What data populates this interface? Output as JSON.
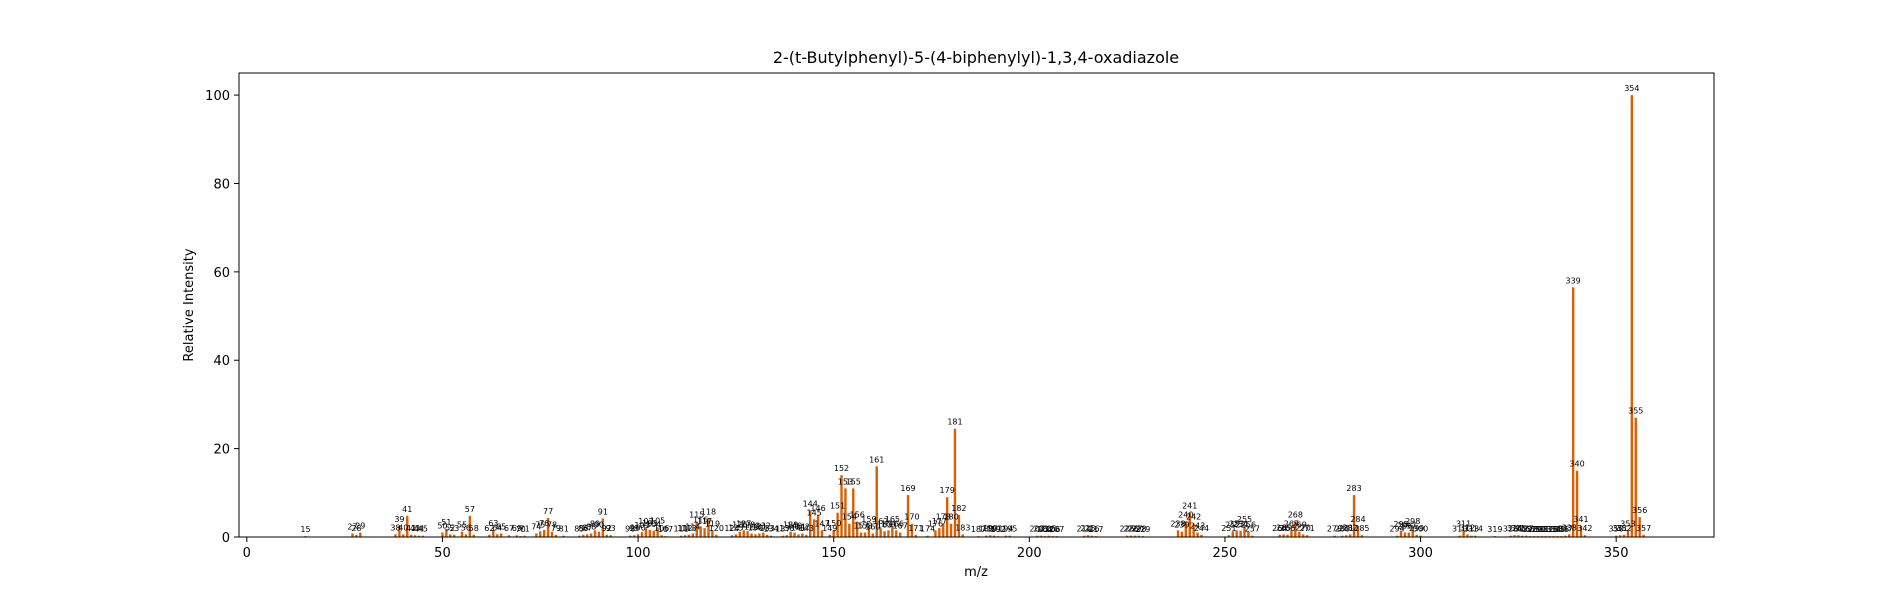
{
  "chart_data": {
    "type": "bar",
    "title": "2-(t-Butylphenyl)-5-(4-biphenylyl)-1,3,4-oxadiazole",
    "xlabel": "m/z",
    "ylabel": "Relative Intensity",
    "xlim": [
      -2,
      375
    ],
    "ylim": [
      0,
      105
    ],
    "xticks": [
      0,
      50,
      100,
      150,
      200,
      250,
      300,
      350
    ],
    "yticks": [
      0,
      20,
      40,
      60,
      80,
      100
    ],
    "bar_color": "#d95f02",
    "peaks": [
      {
        "mz": 15,
        "intensity": 0.2
      },
      {
        "mz": 27,
        "intensity": 0.8
      },
      {
        "mz": 28,
        "intensity": 0.5
      },
      {
        "mz": 29,
        "intensity": 1.0
      },
      {
        "mz": 38,
        "intensity": 0.6
      },
      {
        "mz": 39,
        "intensity": 2.5
      },
      {
        "mz": 40,
        "intensity": 0.6
      },
      {
        "mz": 41,
        "intensity": 4.8
      },
      {
        "mz": 42,
        "intensity": 0.5
      },
      {
        "mz": 43,
        "intensity": 0.4
      },
      {
        "mz": 44,
        "intensity": 0.3
      },
      {
        "mz": 45,
        "intensity": 0.3
      },
      {
        "mz": 50,
        "intensity": 1.0
      },
      {
        "mz": 51,
        "intensity": 1.8
      },
      {
        "mz": 52,
        "intensity": 0.6
      },
      {
        "mz": 53,
        "intensity": 0.5
      },
      {
        "mz": 55,
        "intensity": 1.2
      },
      {
        "mz": 56,
        "intensity": 0.6
      },
      {
        "mz": 57,
        "intensity": 4.8
      },
      {
        "mz": 58,
        "intensity": 0.5
      },
      {
        "mz": 62,
        "intensity": 0.5
      },
      {
        "mz": 63,
        "intensity": 1.6
      },
      {
        "mz": 64,
        "intensity": 0.6
      },
      {
        "mz": 65,
        "intensity": 0.8
      },
      {
        "mz": 67,
        "intensity": 0.4
      },
      {
        "mz": 69,
        "intensity": 0.4
      },
      {
        "mz": 70,
        "intensity": 0.2
      },
      {
        "mz": 71,
        "intensity": 0.3
      },
      {
        "mz": 74,
        "intensity": 0.8
      },
      {
        "mz": 75,
        "intensity": 1.3
      },
      {
        "mz": 76,
        "intensity": 1.6
      },
      {
        "mz": 77,
        "intensity": 4.3
      },
      {
        "mz": 78,
        "intensity": 1.2
      },
      {
        "mz": 79,
        "intensity": 0.5
      },
      {
        "mz": 81,
        "intensity": 0.3
      },
      {
        "mz": 85,
        "intensity": 0.3
      },
      {
        "mz": 86,
        "intensity": 0.5
      },
      {
        "mz": 87,
        "intensity": 0.6
      },
      {
        "mz": 88,
        "intensity": 0.8
      },
      {
        "mz": 89,
        "intensity": 1.5
      },
      {
        "mz": 90,
        "intensity": 1.2
      },
      {
        "mz": 91,
        "intensity": 4.2
      },
      {
        "mz": 92,
        "intensity": 0.5
      },
      {
        "mz": 93,
        "intensity": 0.4
      },
      {
        "mz": 98,
        "intensity": 0.3
      },
      {
        "mz": 99,
        "intensity": 0.4
      },
      {
        "mz": 100,
        "intensity": 0.6
      },
      {
        "mz": 101,
        "intensity": 1.1
      },
      {
        "mz": 102,
        "intensity": 2.0
      },
      {
        "mz": 103,
        "intensity": 1.6
      },
      {
        "mz": 104,
        "intensity": 1.4
      },
      {
        "mz": 105,
        "intensity": 2.2
      },
      {
        "mz": 106,
        "intensity": 0.4
      },
      {
        "mz": 107,
        "intensity": 0.2
      },
      {
        "mz": 111,
        "intensity": 0.3
      },
      {
        "mz": 112,
        "intensity": 0.4
      },
      {
        "mz": 113,
        "intensity": 0.5
      },
      {
        "mz": 114,
        "intensity": 0.8
      },
      {
        "mz": 115,
        "intensity": 3.5
      },
      {
        "mz": 116,
        "intensity": 2.4
      },
      {
        "mz": 117,
        "intensity": 2.0
      },
      {
        "mz": 118,
        "intensity": 4.2
      },
      {
        "mz": 119,
        "intensity": 1.5
      },
      {
        "mz": 120,
        "intensity": 0.5
      },
      {
        "mz": 124,
        "intensity": 0.4
      },
      {
        "mz": 125,
        "intensity": 0.6
      },
      {
        "mz": 126,
        "intensity": 1.2
      },
      {
        "mz": 127,
        "intensity": 1.5
      },
      {
        "mz": 128,
        "intensity": 1.3
      },
      {
        "mz": 129,
        "intensity": 0.8
      },
      {
        "mz": 130,
        "intensity": 0.6
      },
      {
        "mz": 131,
        "intensity": 0.8
      },
      {
        "mz": 132,
        "intensity": 1.0
      },
      {
        "mz": 133,
        "intensity": 0.5
      },
      {
        "mz": 134,
        "intensity": 0.3
      },
      {
        "mz": 137,
        "intensity": 0.3
      },
      {
        "mz": 138,
        "intensity": 0.4
      },
      {
        "mz": 139,
        "intensity": 1.2
      },
      {
        "mz": 140,
        "intensity": 1.0
      },
      {
        "mz": 141,
        "intensity": 0.6
      },
      {
        "mz": 142,
        "intensity": 0.8
      },
      {
        "mz": 143,
        "intensity": 0.5
      },
      {
        "mz": 144,
        "intensity": 6.0
      },
      {
        "mz": 145,
        "intensity": 4.0
      },
      {
        "mz": 146,
        "intensity": 5.0
      },
      {
        "mz": 147,
        "intensity": 1.5
      },
      {
        "mz": 149,
        "intensity": 0.5
      },
      {
        "mz": 150,
        "intensity": 1.6
      },
      {
        "mz": 151,
        "intensity": 5.5
      },
      {
        "mz": 152,
        "intensity": 14.0
      },
      {
        "mz": 153,
        "intensity": 11.0
      },
      {
        "mz": 154,
        "intensity": 3.0
      },
      {
        "mz": 155,
        "intensity": 11.0
      },
      {
        "mz": 156,
        "intensity": 3.5
      },
      {
        "mz": 157,
        "intensity": 1.0
      },
      {
        "mz": 158,
        "intensity": 1.0
      },
      {
        "mz": 159,
        "intensity": 2.5
      },
      {
        "mz": 160,
        "intensity": 0.8
      },
      {
        "mz": 161,
        "intensity": 16.0
      },
      {
        "mz": 162,
        "intensity": 2.0
      },
      {
        "mz": 163,
        "intensity": 1.3
      },
      {
        "mz": 164,
        "intensity": 1.5
      },
      {
        "mz": 165,
        "intensity": 2.5
      },
      {
        "mz": 166,
        "intensity": 1.5
      },
      {
        "mz": 167,
        "intensity": 1.0
      },
      {
        "mz": 169,
        "intensity": 9.5
      },
      {
        "mz": 170,
        "intensity": 3.0
      },
      {
        "mz": 171,
        "intensity": 0.5
      },
      {
        "mz": 174,
        "intensity": 0.3
      },
      {
        "mz": 176,
        "intensity": 1.5
      },
      {
        "mz": 177,
        "intensity": 2.0
      },
      {
        "mz": 178,
        "intensity": 3.0
      },
      {
        "mz": 179,
        "intensity": 9.0
      },
      {
        "mz": 180,
        "intensity": 3.0
      },
      {
        "mz": 181,
        "intensity": 24.5
      },
      {
        "mz": 182,
        "intensity": 5.0
      },
      {
        "mz": 183,
        "intensity": 0.6
      },
      {
        "mz": 187,
        "intensity": 0.2
      },
      {
        "mz": 189,
        "intensity": 0.3
      },
      {
        "mz": 190,
        "intensity": 0.4
      },
      {
        "mz": 191,
        "intensity": 0.3
      },
      {
        "mz": 192,
        "intensity": 0.2
      },
      {
        "mz": 194,
        "intensity": 0.3
      },
      {
        "mz": 195,
        "intensity": 0.3
      },
      {
        "mz": 202,
        "intensity": 0.3
      },
      {
        "mz": 203,
        "intensity": 0.3
      },
      {
        "mz": 204,
        "intensity": 0.2
      },
      {
        "mz": 205,
        "intensity": 0.3
      },
      {
        "mz": 206,
        "intensity": 0.2
      },
      {
        "mz": 207,
        "intensity": 0.2
      },
      {
        "mz": 214,
        "intensity": 0.3
      },
      {
        "mz": 215,
        "intensity": 0.4
      },
      {
        "mz": 216,
        "intensity": 0.3
      },
      {
        "mz": 217,
        "intensity": 0.2
      },
      {
        "mz": 225,
        "intensity": 0.3
      },
      {
        "mz": 226,
        "intensity": 0.3
      },
      {
        "mz": 227,
        "intensity": 0.3
      },
      {
        "mz": 228,
        "intensity": 0.3
      },
      {
        "mz": 229,
        "intensity": 0.2
      },
      {
        "mz": 238,
        "intensity": 1.5
      },
      {
        "mz": 239,
        "intensity": 1.2
      },
      {
        "mz": 240,
        "intensity": 3.5
      },
      {
        "mz": 241,
        "intensity": 5.5
      },
      {
        "mz": 242,
        "intensity": 3.0
      },
      {
        "mz": 243,
        "intensity": 1.0
      },
      {
        "mz": 244,
        "intensity": 0.5
      },
      {
        "mz": 251,
        "intensity": 0.4
      },
      {
        "mz": 252,
        "intensity": 1.3
      },
      {
        "mz": 253,
        "intensity": 1.5
      },
      {
        "mz": 254,
        "intensity": 1.4
      },
      {
        "mz": 255,
        "intensity": 2.5
      },
      {
        "mz": 256,
        "intensity": 1.2
      },
      {
        "mz": 257,
        "intensity": 0.3
      },
      {
        "mz": 264,
        "intensity": 0.5
      },
      {
        "mz": 265,
        "intensity": 0.6
      },
      {
        "mz": 266,
        "intensity": 0.5
      },
      {
        "mz": 267,
        "intensity": 1.5
      },
      {
        "mz": 268,
        "intensity": 3.5
      },
      {
        "mz": 269,
        "intensity": 1.2
      },
      {
        "mz": 270,
        "intensity": 0.6
      },
      {
        "mz": 271,
        "intensity": 0.4
      },
      {
        "mz": 278,
        "intensity": 0.3
      },
      {
        "mz": 280,
        "intensity": 0.3
      },
      {
        "mz": 281,
        "intensity": 0.4
      },
      {
        "mz": 282,
        "intensity": 0.6
      },
      {
        "mz": 283,
        "intensity": 9.5
      },
      {
        "mz": 284,
        "intensity": 2.5
      },
      {
        "mz": 285,
        "intensity": 0.4
      },
      {
        "mz": 294,
        "intensity": 0.3
      },
      {
        "mz": 295,
        "intensity": 1.4
      },
      {
        "mz": 296,
        "intensity": 1.0
      },
      {
        "mz": 297,
        "intensity": 1.0
      },
      {
        "mz": 298,
        "intensity": 2.0
      },
      {
        "mz": 299,
        "intensity": 0.5
      },
      {
        "mz": 300,
        "intensity": 0.3
      },
      {
        "mz": 310,
        "intensity": 0.3
      },
      {
        "mz": 311,
        "intensity": 1.5
      },
      {
        "mz": 312,
        "intensity": 0.6
      },
      {
        "mz": 313,
        "intensity": 0.3
      },
      {
        "mz": 314,
        "intensity": 0.3
      },
      {
        "mz": 319,
        "intensity": 0.2
      },
      {
        "mz": 323,
        "intensity": 0.3
      },
      {
        "mz": 324,
        "intensity": 0.4
      },
      {
        "mz": 325,
        "intensity": 0.4
      },
      {
        "mz": 326,
        "intensity": 0.3
      },
      {
        "mz": 327,
        "intensity": 0.3
      },
      {
        "mz": 328,
        "intensity": 0.2
      },
      {
        "mz": 329,
        "intensity": 0.2
      },
      {
        "mz": 330,
        "intensity": 0.2
      },
      {
        "mz": 331,
        "intensity": 0.2
      },
      {
        "mz": 332,
        "intensity": 0.2
      },
      {
        "mz": 333,
        "intensity": 0.2
      },
      {
        "mz": 334,
        "intensity": 0.2
      },
      {
        "mz": 335,
        "intensity": 0.2
      },
      {
        "mz": 336,
        "intensity": 0.2
      },
      {
        "mz": 337,
        "intensity": 0.3
      },
      {
        "mz": 338,
        "intensity": 0.6
      },
      {
        "mz": 339,
        "intensity": 56.5
      },
      {
        "mz": 340,
        "intensity": 15.0
      },
      {
        "mz": 341,
        "intensity": 2.5
      },
      {
        "mz": 342,
        "intensity": 0.4
      },
      {
        "mz": 350,
        "intensity": 0.3
      },
      {
        "mz": 351,
        "intensity": 0.4
      },
      {
        "mz": 352,
        "intensity": 0.5
      },
      {
        "mz": 353,
        "intensity": 1.5
      },
      {
        "mz": 354,
        "intensity": 100.0
      },
      {
        "mz": 355,
        "intensity": 27.0
      },
      {
        "mz": 356,
        "intensity": 4.5
      },
      {
        "mz": 357,
        "intensity": 0.5
      }
    ]
  }
}
